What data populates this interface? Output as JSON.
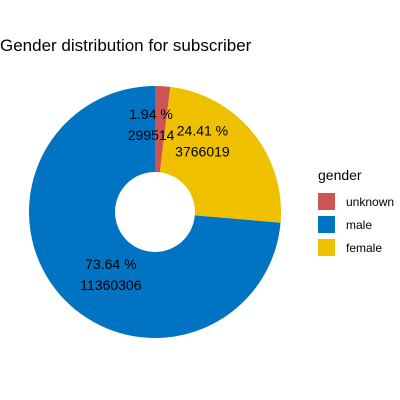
{
  "chart_data": {
    "type": "pie",
    "title": "Gender distribution for subscriber",
    "legend_title": "gender",
    "legend_position": "right",
    "donut": true,
    "slices": [
      {
        "label": "unknown",
        "value": 299514,
        "percent_label": "1.94 %",
        "count_label": "299514",
        "color": "#cd5454"
      },
      {
        "label": "female",
        "value": 3766019,
        "percent_label": "24.41 %",
        "count_label": "3766019",
        "color": "#efc000"
      },
      {
        "label": "male",
        "value": 11360306,
        "percent_label": "73.64 %",
        "count_label": "11360306",
        "color": "#0073c2"
      }
    ],
    "legend": [
      {
        "label": "unknown",
        "color": "#cd5454"
      },
      {
        "label": "male",
        "color": "#0073c2"
      },
      {
        "label": "female",
        "color": "#efc000"
      }
    ]
  }
}
